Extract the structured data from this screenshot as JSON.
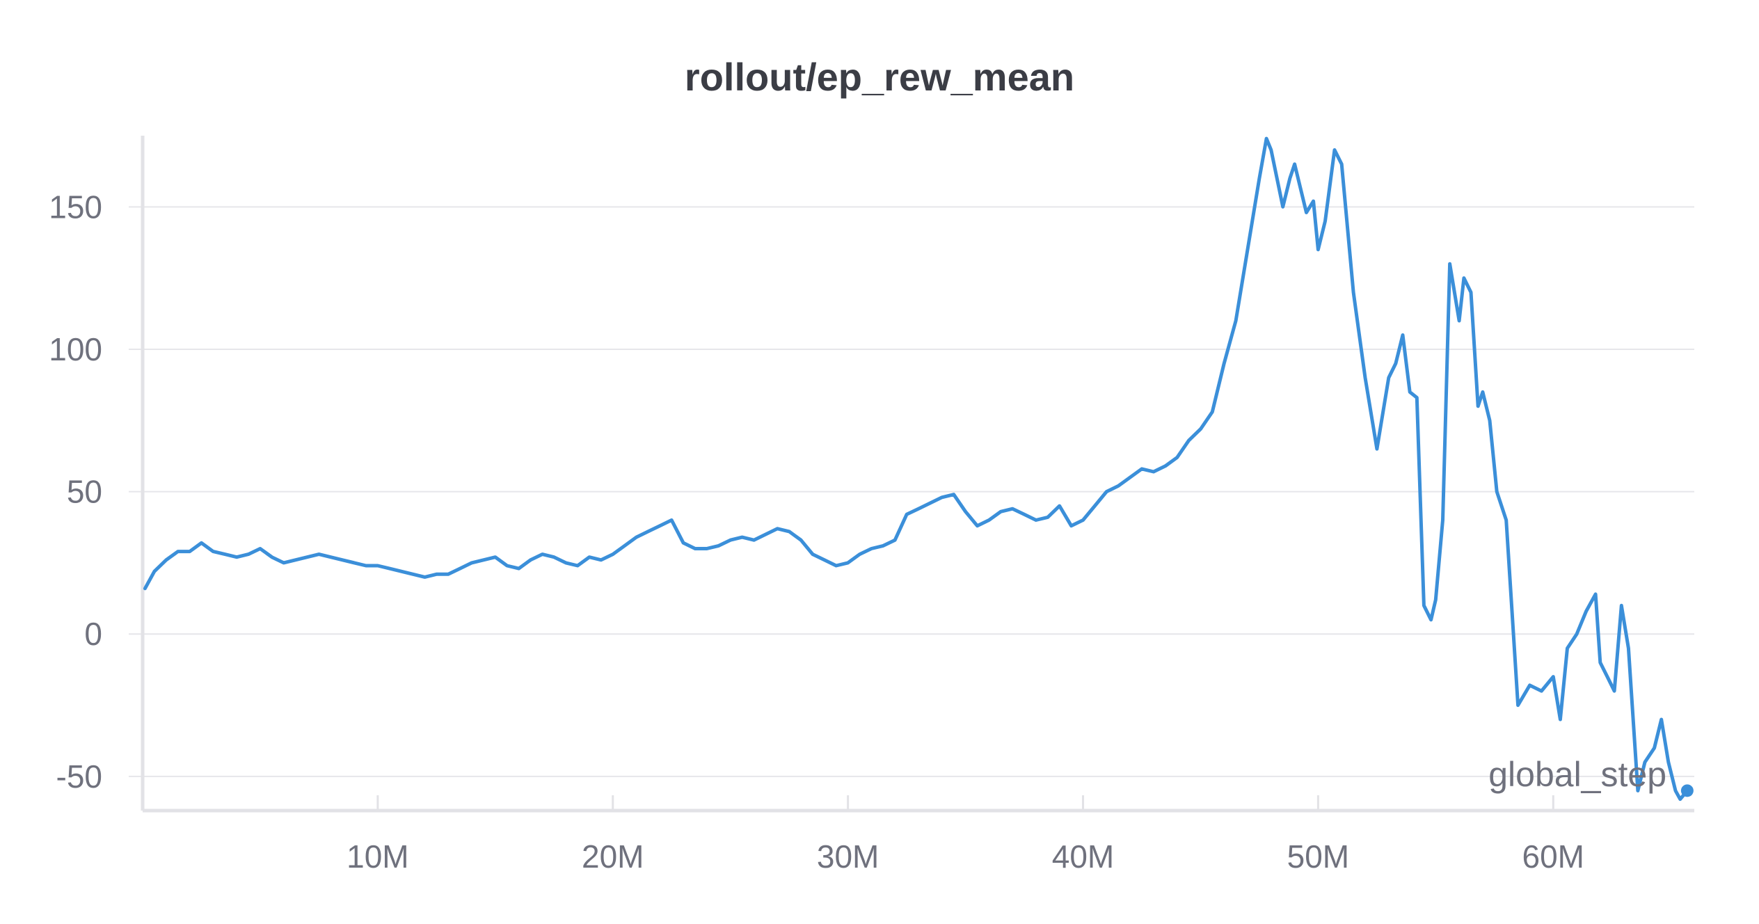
{
  "chart_data": {
    "type": "line",
    "title": "rollout/ep_rew_mean",
    "xlabel": "global_step",
    "ylabel": "",
    "xlim": [
      0,
      66000000
    ],
    "ylim": [
      -62,
      175
    ],
    "grid": true,
    "x_ticks": [
      10000000,
      20000000,
      30000000,
      40000000,
      50000000,
      60000000
    ],
    "x_tick_labels": [
      "10M",
      "20M",
      "30M",
      "40M",
      "50M",
      "60M"
    ],
    "y_ticks": [
      -50,
      0,
      50,
      100,
      150
    ],
    "y_tick_labels": [
      "-50",
      "0",
      "50",
      "100",
      "150"
    ],
    "series": [
      {
        "color": "#3b8fd9",
        "x": [
          100000,
          500000,
          1000000,
          1500000,
          2000000,
          2500000,
          3000000,
          3500000,
          4000000,
          4500000,
          5000000,
          5500000,
          6000000,
          6500000,
          7000000,
          7500000,
          8000000,
          8500000,
          9000000,
          9500000,
          10000000,
          10500000,
          11000000,
          11500000,
          12000000,
          12500000,
          13000000,
          13500000,
          14000000,
          14500000,
          15000000,
          15500000,
          16000000,
          16500000,
          17000000,
          17500000,
          18000000,
          18500000,
          19000000,
          19500000,
          20000000,
          20500000,
          21000000,
          21500000,
          22000000,
          22500000,
          23000000,
          23500000,
          24000000,
          24500000,
          25000000,
          25500000,
          26000000,
          26500000,
          27000000,
          27500000,
          28000000,
          28500000,
          29000000,
          29500000,
          30000000,
          30500000,
          31000000,
          31500000,
          32000000,
          32500000,
          33000000,
          33500000,
          34000000,
          34500000,
          35000000,
          35500000,
          36000000,
          36500000,
          37000000,
          37500000,
          38000000,
          38500000,
          39000000,
          39500000,
          40000000,
          40500000,
          41000000,
          41500000,
          42000000,
          42500000,
          43000000,
          43500000,
          44000000,
          44500000,
          45000000,
          45500000,
          46000000,
          46500000,
          47000000,
          47500000,
          47800000,
          48000000,
          48500000,
          48800000,
          49000000,
          49500000,
          49800000,
          50000000,
          50300000,
          50700000,
          51000000,
          51500000,
          52000000,
          52500000,
          53000000,
          53300000,
          53600000,
          53900000,
          54200000,
          54500000,
          54800000,
          55000000,
          55300000,
          55600000,
          56000000,
          56200000,
          56500000,
          56800000,
          57000000,
          57300000,
          57600000,
          58000000,
          58500000,
          59000000,
          59500000,
          60000000,
          60300000,
          60600000,
          61000000,
          61400000,
          61800000,
          62000000,
          62300000,
          62600000,
          62900000,
          63200000,
          63600000,
          63900000,
          64300000,
          64600000,
          64900000,
          65200000,
          65400000,
          65700000
        ],
        "y": [
          16,
          22,
          26,
          29,
          29,
          32,
          29,
          28,
          27,
          28,
          30,
          27,
          25,
          26,
          27,
          28,
          27,
          26,
          25,
          24,
          24,
          23,
          22,
          21,
          20,
          21,
          21,
          23,
          25,
          26,
          27,
          24,
          23,
          26,
          28,
          27,
          25,
          24,
          27,
          26,
          28,
          31,
          34,
          36,
          38,
          40,
          32,
          30,
          30,
          31,
          33,
          34,
          33,
          35,
          37,
          36,
          33,
          28,
          26,
          24,
          25,
          28,
          30,
          31,
          33,
          42,
          44,
          46,
          48,
          49,
          43,
          38,
          40,
          43,
          44,
          42,
          40,
          41,
          45,
          38,
          40,
          45,
          50,
          52,
          55,
          58,
          57,
          59,
          62,
          68,
          72,
          78,
          95,
          110,
          135,
          160,
          174,
          170,
          150,
          160,
          165,
          148,
          152,
          135,
          145,
          170,
          165,
          120,
          90,
          65,
          90,
          95,
          105,
          85,
          83,
          10,
          5,
          12,
          40,
          130,
          110,
          125,
          120,
          80,
          85,
          75,
          50,
          40,
          -25,
          -18,
          -20,
          -15,
          -30,
          -5,
          0,
          8,
          14,
          -10,
          -15,
          -20,
          10,
          -5,
          -55,
          -45,
          -40,
          -30,
          -45,
          -55,
          -58,
          -55
        ]
      }
    ]
  }
}
